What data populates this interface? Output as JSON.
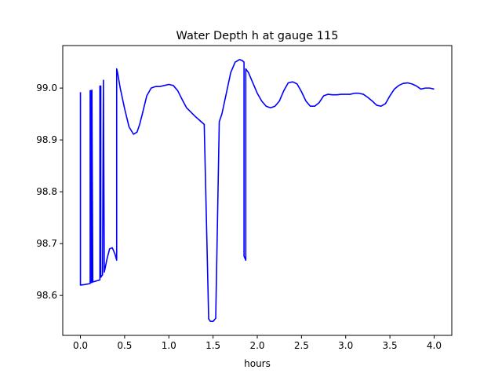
{
  "chart_data": {
    "type": "line",
    "title": "Water Depth h at gauge 115",
    "xlabel": "hours",
    "ylabel": "",
    "xlim": [
      -0.2,
      4.2
    ],
    "ylim": [
      98.523,
      99.082
    ],
    "xticks": [
      0.0,
      0.5,
      1.0,
      1.5,
      2.0,
      2.5,
      3.0,
      3.5,
      4.0
    ],
    "xtick_labels": [
      "0.0",
      "0.5",
      "1.0",
      "1.5",
      "2.0",
      "2.5",
      "3.0",
      "3.5",
      "4.0"
    ],
    "yticks": [
      98.6,
      98.7,
      98.8,
      98.9,
      99.0
    ],
    "ytick_labels": [
      "98.6",
      "98.7",
      "98.8",
      "98.9",
      "99.0"
    ],
    "grid": false,
    "series": [
      {
        "color": "#0000ff",
        "x": [
          0.0,
          0.0,
          0.05,
          0.11,
          0.11,
          0.12,
          0.12,
          0.13,
          0.13,
          0.14,
          0.22,
          0.22,
          0.23,
          0.23,
          0.25,
          0.26,
          0.26,
          0.27,
          0.3,
          0.33,
          0.36,
          0.39,
          0.41,
          0.41,
          0.42,
          0.45,
          0.5,
          0.55,
          0.6,
          0.64,
          0.67,
          0.7,
          0.75,
          0.8,
          0.85,
          0.9,
          0.95,
          1.0,
          1.05,
          1.1,
          1.15,
          1.2,
          1.3,
          1.4,
          1.45,
          1.45,
          1.47,
          1.5,
          1.53,
          1.57,
          1.57,
          1.6,
          1.65,
          1.7,
          1.75,
          1.8,
          1.83,
          1.85,
          1.85,
          1.87,
          1.87,
          1.9,
          1.95,
          2.0,
          2.05,
          2.1,
          2.15,
          2.2,
          2.25,
          2.3,
          2.35,
          2.4,
          2.45,
          2.5,
          2.55,
          2.6,
          2.65,
          2.7,
          2.75,
          2.8,
          2.85,
          2.9,
          2.95,
          3.0,
          3.05,
          3.1,
          3.15,
          3.2,
          3.25,
          3.3,
          3.35,
          3.4,
          3.45,
          3.5,
          3.55,
          3.6,
          3.65,
          3.7,
          3.75,
          3.8,
          3.85,
          3.9,
          3.95,
          4.0
        ],
        "y": [
          98.992,
          98.62,
          98.621,
          98.623,
          98.995,
          98.995,
          98.625,
          98.625,
          98.996,
          98.626,
          98.63,
          99.004,
          99.004,
          98.635,
          98.64,
          99.015,
          99.015,
          98.645,
          98.67,
          98.69,
          98.692,
          98.68,
          98.668,
          99.037,
          99.03,
          99.0,
          98.96,
          98.925,
          98.911,
          98.915,
          98.93,
          98.95,
          98.985,
          99.0,
          99.003,
          99.003,
          99.005,
          99.007,
          99.005,
          98.995,
          98.978,
          98.962,
          98.945,
          98.93,
          98.558,
          98.555,
          98.55,
          98.55,
          98.556,
          98.933,
          98.935,
          98.95,
          98.99,
          99.03,
          99.05,
          99.055,
          99.053,
          99.05,
          98.676,
          98.668,
          99.037,
          99.03,
          99.01,
          98.99,
          98.975,
          98.965,
          98.962,
          98.965,
          98.975,
          98.995,
          99.01,
          99.012,
          99.008,
          98.993,
          98.975,
          98.965,
          98.965,
          98.972,
          98.985,
          98.988,
          98.987,
          98.987,
          98.988,
          98.988,
          98.988,
          98.99,
          98.99,
          98.988,
          98.982,
          98.975,
          98.967,
          98.965,
          98.97,
          98.985,
          98.998,
          99.005,
          99.009,
          99.01,
          99.008,
          99.004,
          98.998,
          99.0,
          99.0,
          98.998
        ]
      }
    ]
  }
}
